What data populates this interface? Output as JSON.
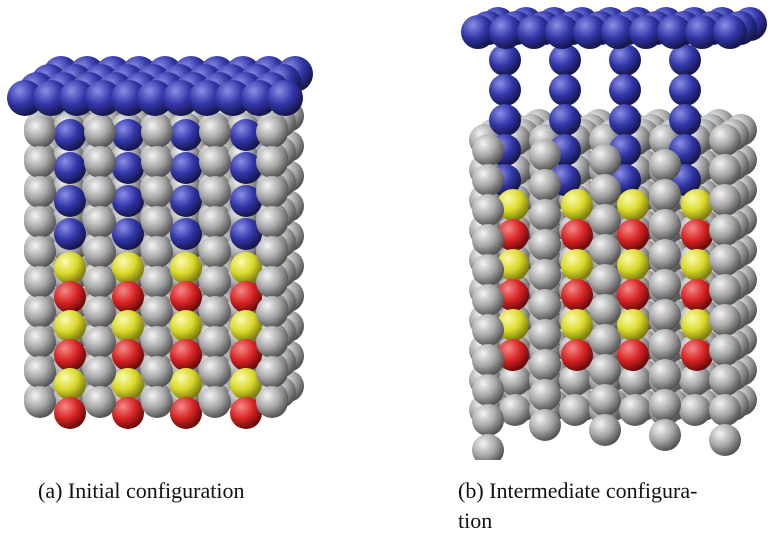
{
  "figures": [
    {
      "caption_lines": [
        "(a) Initial configuration"
      ]
    },
    {
      "caption_lines": [
        "(b) Intermediate configura-",
        "tion"
      ]
    }
  ]
}
